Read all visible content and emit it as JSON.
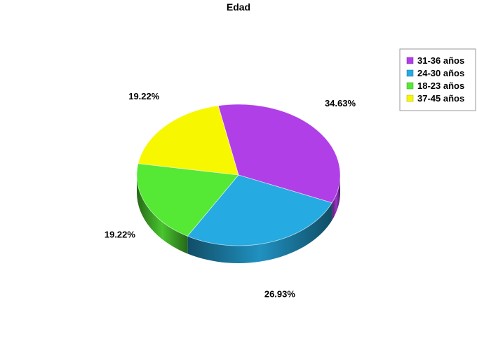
{
  "chart_data": {
    "type": "pie",
    "title": "Edad",
    "legend_position": "top-right",
    "slices": [
      {
        "label": "31-36 años",
        "value": 34.63,
        "value_label": "34.63%",
        "color": "#B03FE8"
      },
      {
        "label": "24-30 años",
        "value": 26.93,
        "value_label": "26.93%",
        "color": "#26AAE2"
      },
      {
        "label": "18-23 años",
        "value": 19.22,
        "value_label": "19.22%",
        "color": "#55E835"
      },
      {
        "label": "37-45 años",
        "value": 19.22,
        "value_label": "19.22%",
        "color": "#F7F700"
      }
    ]
  }
}
